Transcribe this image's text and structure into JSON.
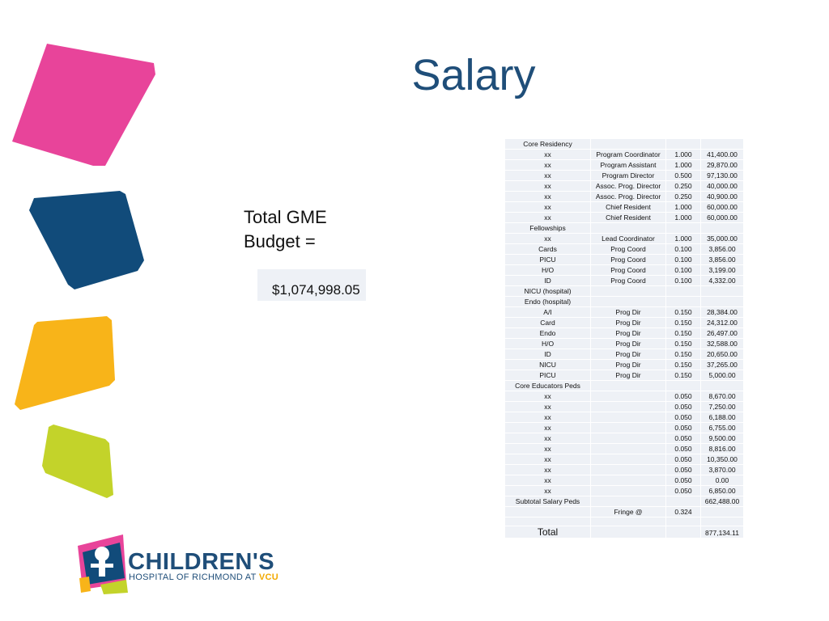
{
  "title": "Salary",
  "budget": {
    "label_line1": "Total GME",
    "label_line2": "Budget =",
    "value": "$1,074,998.05"
  },
  "table": {
    "rows": [
      {
        "c1": "Core Residency",
        "c2": "",
        "c3": "",
        "c4": ""
      },
      {
        "c1": "xx",
        "c2": "Program Coordinator",
        "c3": "1.000",
        "c4": "41,400.00"
      },
      {
        "c1": "xx",
        "c2": "Program Assistant",
        "c3": "1.000",
        "c4": "29,870.00"
      },
      {
        "c1": "xx",
        "c2": "Program Director",
        "c3": "0.500",
        "c4": "97,130.00"
      },
      {
        "c1": "xx",
        "c2": "Assoc. Prog. Director",
        "c3": "0.250",
        "c4": "40,000.00"
      },
      {
        "c1": "xx",
        "c2": "Assoc. Prog. Director",
        "c3": "0.250",
        "c4": "40,900.00"
      },
      {
        "c1": "xx",
        "c2": "Chief Resident",
        "c3": "1.000",
        "c4": "60,000.00"
      },
      {
        "c1": "xx",
        "c2": "Chief Resident",
        "c3": "1.000",
        "c4": "60,000.00"
      },
      {
        "c1": "Fellowships",
        "c2": "",
        "c3": "",
        "c4": ""
      },
      {
        "c1": "xx",
        "c2": "Lead Coordinator",
        "c3": "1.000",
        "c4": "35,000.00"
      },
      {
        "c1": "Cards",
        "c2": "Prog Coord",
        "c3": "0.100",
        "c4": "3,856.00"
      },
      {
        "c1": "PICU",
        "c2": "Prog Coord",
        "c3": "0.100",
        "c4": "3,856.00"
      },
      {
        "c1": "H/O",
        "c2": "Prog Coord",
        "c3": "0.100",
        "c4": "3,199.00"
      },
      {
        "c1": "ID",
        "c2": "Prog Coord",
        "c3": "0.100",
        "c4": "4,332.00"
      },
      {
        "c1": "NICU (hospital)",
        "c2": "",
        "c3": "",
        "c4": ""
      },
      {
        "c1": "Endo (hospital)",
        "c2": "",
        "c3": "",
        "c4": ""
      },
      {
        "c1": "A/I",
        "c2": "Prog Dir",
        "c3": "0.150",
        "c4": "28,384.00"
      },
      {
        "c1": "Card",
        "c2": "Prog Dir",
        "c3": "0.150",
        "c4": "24,312.00"
      },
      {
        "c1": "Endo",
        "c2": "Prog Dir",
        "c3": "0.150",
        "c4": "26,497.00"
      },
      {
        "c1": "H/O",
        "c2": "Prog Dir",
        "c3": "0.150",
        "c4": "32,588.00"
      },
      {
        "c1": "ID",
        "c2": "Prog Dir",
        "c3": "0.150",
        "c4": "20,650.00"
      },
      {
        "c1": "NICU",
        "c2": "Prog Dir",
        "c3": "0.150",
        "c4": "37,265.00"
      },
      {
        "c1": "PICU",
        "c2": "Prog Dir",
        "c3": "0.150",
        "c4": "5,000.00"
      },
      {
        "c1": "Core Educators Peds",
        "c2": "",
        "c3": "",
        "c4": ""
      },
      {
        "c1": "xx",
        "c2": "",
        "c3": "0.050",
        "c4": "8,670.00"
      },
      {
        "c1": "xx",
        "c2": "",
        "c3": "0.050",
        "c4": "7,250.00"
      },
      {
        "c1": "xx",
        "c2": "",
        "c3": "0.050",
        "c4": "6,188.00"
      },
      {
        "c1": "xx",
        "c2": "",
        "c3": "0.050",
        "c4": "6,755.00"
      },
      {
        "c1": "xx",
        "c2": "",
        "c3": "0.050",
        "c4": "9,500.00"
      },
      {
        "c1": "xx",
        "c2": "",
        "c3": "0.050",
        "c4": "8,816.00"
      },
      {
        "c1": "xx",
        "c2": "",
        "c3": "0.050",
        "c4": "10,350.00"
      },
      {
        "c1": "xx",
        "c2": "",
        "c3": "0.050",
        "c4": "3,870.00"
      },
      {
        "c1": "xx",
        "c2": "",
        "c3": "0.050",
        "c4": "0.00"
      },
      {
        "c1": "xx",
        "c2": "",
        "c3": "0.050",
        "c4": "6,850.00"
      },
      {
        "c1": "Subtotal Salary Peds",
        "c2": "",
        "c3": "",
        "c4": "662,488.00"
      },
      {
        "c1": "",
        "c2": "Fringe @",
        "c3": "0.324",
        "c4": ""
      }
    ],
    "total_label": "Total",
    "total_value": "877,134.11"
  },
  "logo": {
    "name": "CHILDREN'S",
    "sub": "HOSPITAL OF RICHMOND AT",
    "sub_accent": "VCU"
  },
  "colors": {
    "pink": "#e8449a",
    "navy": "#114b7a",
    "gold": "#f8b419",
    "lime": "#c3d32a",
    "title": "#1f4e79"
  }
}
